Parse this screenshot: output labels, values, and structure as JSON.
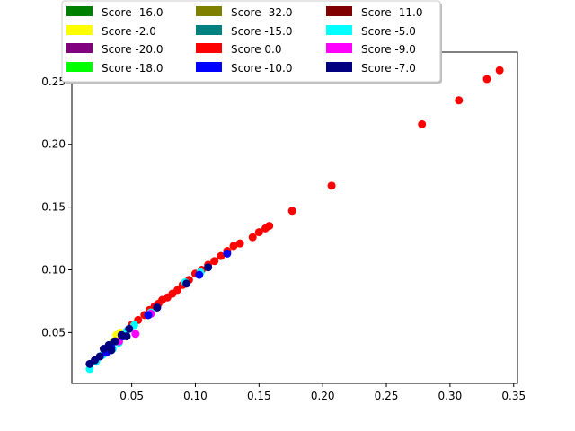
{
  "chart_data": {
    "type": "scatter",
    "xlim": [
      0.003,
      0.353
    ],
    "ylim": [
      0.0095,
      0.2735
    ],
    "xticks": [
      0.05,
      0.1,
      0.15,
      0.2,
      0.25,
      0.3,
      0.35
    ],
    "xtick_labels": [
      "0.05",
      "0.10",
      "0.15",
      "0.20",
      "0.25",
      "0.30",
      "0.35"
    ],
    "yticks": [
      0.05,
      0.1,
      0.15,
      0.2,
      0.25
    ],
    "ytick_labels": [
      "0.05",
      "0.10",
      "0.15",
      "0.20",
      "0.25"
    ],
    "grid": false,
    "legend": {
      "placement": "top-center",
      "columns": 3
    },
    "series": [
      {
        "name": "Score -16.0",
        "color": "#008000",
        "points": []
      },
      {
        "name": "Score -32.0",
        "color": "#808000",
        "points": [
          [
            0.036,
            0.043
          ]
        ]
      },
      {
        "name": "Score -11.0",
        "color": "#800000",
        "points": []
      },
      {
        "name": "Score -2.0",
        "color": "#ffff00",
        "points": [
          [
            0.038,
            0.048
          ],
          [
            0.041,
            0.05
          ]
        ]
      },
      {
        "name": "Score -15.0",
        "color": "#008080",
        "points": []
      },
      {
        "name": "Score -5.0",
        "color": "#00ffff",
        "points": [
          [
            0.017,
            0.021
          ],
          [
            0.022,
            0.027
          ],
          [
            0.027,
            0.032
          ],
          [
            0.03,
            0.036
          ],
          [
            0.035,
            0.037
          ],
          [
            0.04,
            0.042
          ],
          [
            0.046,
            0.051
          ],
          [
            0.052,
            0.056
          ],
          [
            0.065,
            0.066
          ],
          [
            0.092,
            0.09
          ],
          [
            0.104,
            0.098
          ]
        ]
      },
      {
        "name": "Score -20.0",
        "color": "#800080",
        "points": [
          [
            0.063,
            0.064
          ]
        ]
      },
      {
        "name": "Score 0.0",
        "color": "#ff0000",
        "points": [
          [
            0.05,
            0.056
          ],
          [
            0.055,
            0.06
          ],
          [
            0.06,
            0.064
          ],
          [
            0.064,
            0.068
          ],
          [
            0.068,
            0.071
          ],
          [
            0.071,
            0.073
          ],
          [
            0.074,
            0.076
          ],
          [
            0.078,
            0.078
          ],
          [
            0.082,
            0.081
          ],
          [
            0.086,
            0.084
          ],
          [
            0.09,
            0.088
          ],
          [
            0.095,
            0.092
          ],
          [
            0.1,
            0.097
          ],
          [
            0.105,
            0.1
          ],
          [
            0.11,
            0.104
          ],
          [
            0.115,
            0.107
          ],
          [
            0.12,
            0.111
          ],
          [
            0.125,
            0.115
          ],
          [
            0.13,
            0.119
          ],
          [
            0.135,
            0.121
          ],
          [
            0.145,
            0.126
          ],
          [
            0.15,
            0.13
          ],
          [
            0.155,
            0.133
          ],
          [
            0.158,
            0.135
          ],
          [
            0.176,
            0.147
          ],
          [
            0.207,
            0.167
          ],
          [
            0.278,
            0.216
          ],
          [
            0.307,
            0.235
          ],
          [
            0.329,
            0.252
          ],
          [
            0.339,
            0.259
          ]
        ]
      },
      {
        "name": "Score -9.0",
        "color": "#ff00ff",
        "points": [
          [
            0.04,
            0.043
          ],
          [
            0.053,
            0.049
          ],
          [
            0.065,
            0.065
          ]
        ]
      },
      {
        "name": "Score -18.0",
        "color": "#00ff00",
        "points": []
      },
      {
        "name": "Score -10.0",
        "color": "#0000ff",
        "points": [
          [
            0.03,
            0.034
          ],
          [
            0.034,
            0.038
          ],
          [
            0.043,
            0.047
          ],
          [
            0.063,
            0.064
          ],
          [
            0.103,
            0.096
          ],
          [
            0.125,
            0.113
          ]
        ]
      },
      {
        "name": "Score -7.0",
        "color": "#000080",
        "points": [
          [
            0.017,
            0.025
          ],
          [
            0.021,
            0.028
          ],
          [
            0.025,
            0.031
          ],
          [
            0.028,
            0.037
          ],
          [
            0.032,
            0.04
          ],
          [
            0.034,
            0.036
          ],
          [
            0.037,
            0.043
          ],
          [
            0.042,
            0.048
          ],
          [
            0.046,
            0.047
          ],
          [
            0.048,
            0.053
          ],
          [
            0.07,
            0.07
          ],
          [
            0.093,
            0.089
          ],
          [
            0.11,
            0.102
          ]
        ]
      }
    ]
  }
}
